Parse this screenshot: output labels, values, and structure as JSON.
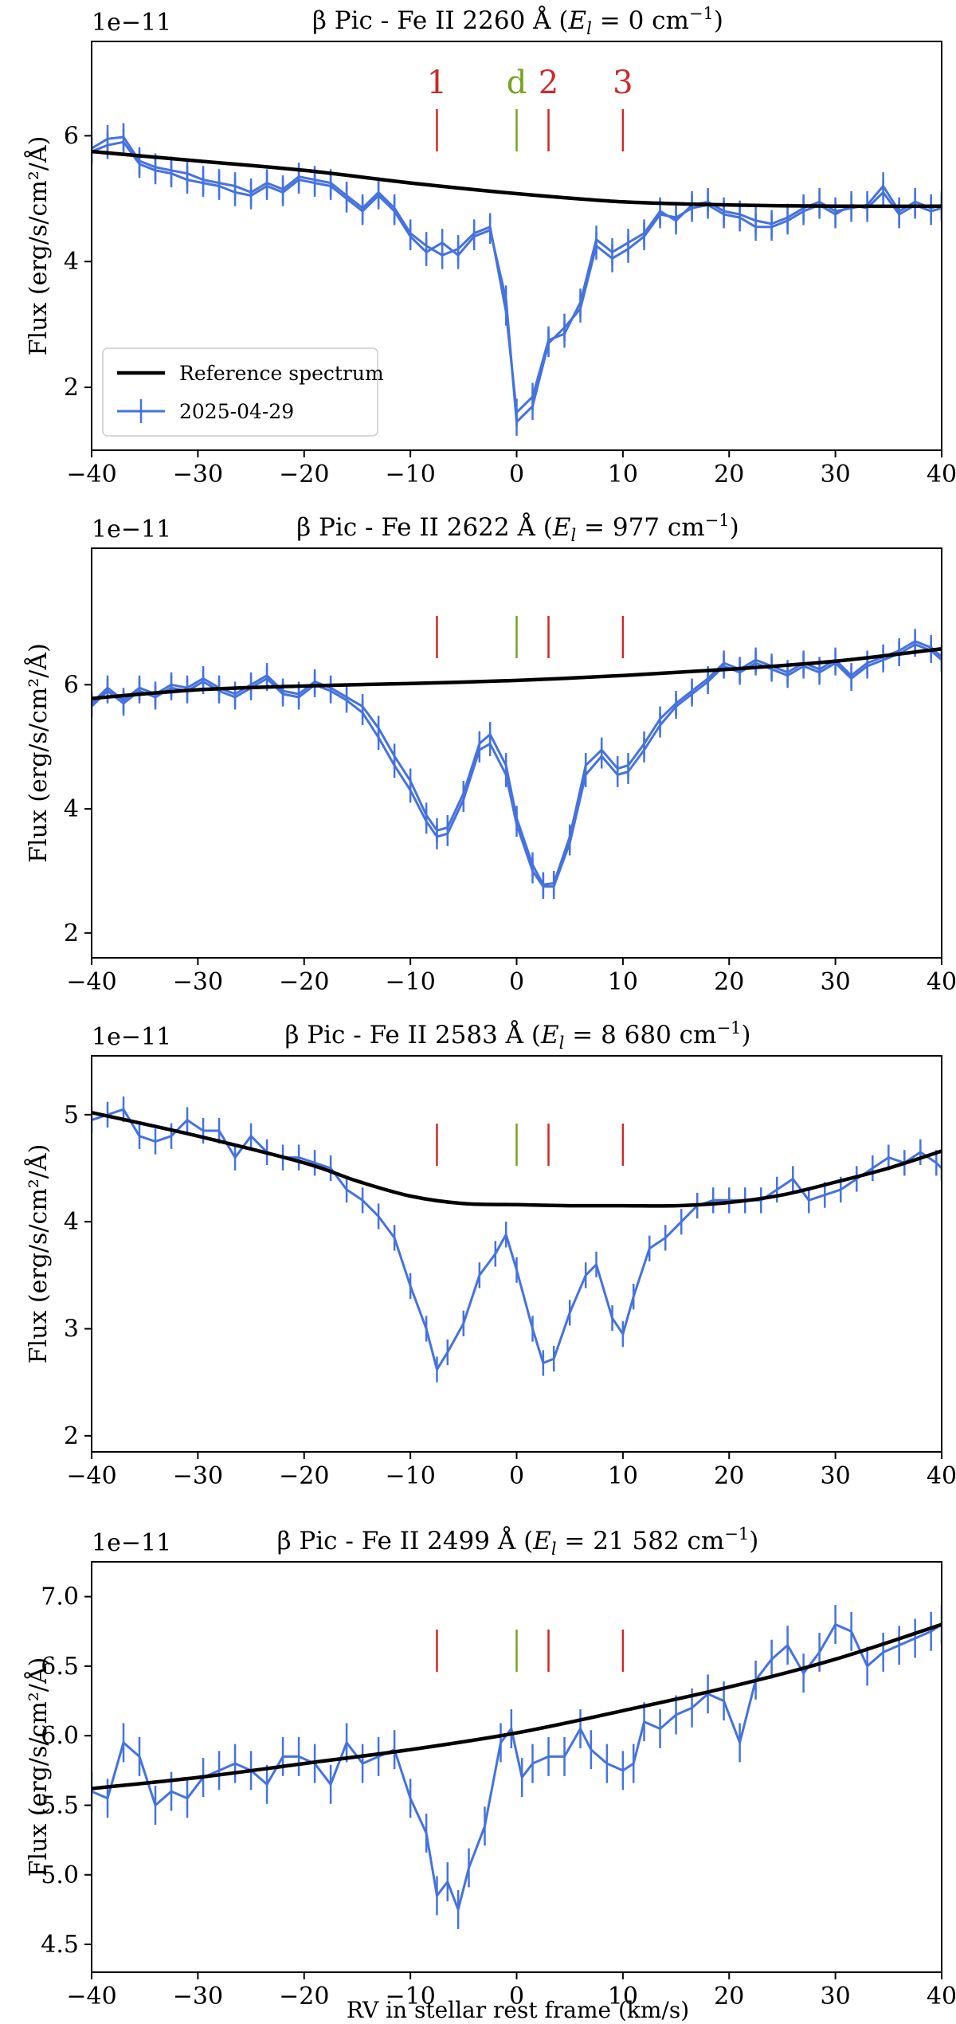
{
  "figure": {
    "xlabel": "RV in stellar rest frame (km/s)"
  },
  "chart_data": [
    {
      "type": "line",
      "title": "β Pic  -  Fe II 2260 Å  (E_l = 0 cm⁻¹)",
      "title_parts": {
        "prefix": "β Pic  -  Fe II 2260 Å  (",
        "El": "E",
        "sub": "l",
        "value": " = 0 cm",
        "sup": "−1",
        "suffix": ")"
      },
      "offset_label": "1e−11",
      "ylabel": "Flux (erg/s/cm²/Å)",
      "xlim": [
        -40,
        40
      ],
      "ylim": [
        1.0,
        7.5
      ],
      "xticks": [
        -40,
        -30,
        -20,
        -10,
        0,
        10,
        20,
        30,
        40
      ],
      "xtick_labels": [
        "−40",
        "−30",
        "−20",
        "−10",
        "0",
        "10",
        "20",
        "30",
        "40"
      ],
      "yticks": [
        2,
        4,
        6
      ],
      "ytick_labels": [
        "2",
        "4",
        "6"
      ],
      "legend": {
        "position": "bottom-left",
        "entries": [
          "Reference spectrum",
          "2025-04-29"
        ]
      },
      "markers": [
        {
          "x": -7.5,
          "label": "1",
          "color": "#cc2a2a"
        },
        {
          "x": 0,
          "label": "d",
          "color": "#76a323"
        },
        {
          "x": 3,
          "label": "2",
          "color": "#cc2a2a"
        },
        {
          "x": 10,
          "label": "3",
          "color": "#cc2a2a"
        }
      ],
      "reference": {
        "name": "Reference spectrum",
        "x": [
          -40,
          -30,
          -20,
          -10,
          0,
          10,
          20,
          30,
          40
        ],
        "y": [
          5.75,
          5.6,
          5.45,
          5.25,
          5.08,
          4.95,
          4.9,
          4.88,
          4.88
        ]
      },
      "series": [
        {
          "name": "2025-04-29",
          "x": [
            -40,
            -38.5,
            -37,
            -35.5,
            -34,
            -32.5,
            -31,
            -29.5,
            -28,
            -26.5,
            -25,
            -23.5,
            -22,
            -20.5,
            -19,
            -17.5,
            -16,
            -14.5,
            -13,
            -11.5,
            -10,
            -8.5,
            -7,
            -5.5,
            -4,
            -2.5,
            -1,
            0,
            1.5,
            3,
            4.5,
            6,
            7.5,
            9,
            10.5,
            12,
            13.5,
            15,
            16.5,
            18,
            19.5,
            21,
            22.5,
            24,
            25.5,
            27,
            28.5,
            30,
            31.5,
            33,
            34.5,
            36,
            37.5,
            39,
            40
          ],
          "y": [
            5.8,
            5.95,
            5.98,
            5.6,
            5.5,
            5.45,
            5.4,
            5.3,
            5.25,
            5.2,
            5.1,
            5.25,
            5.15,
            5.35,
            5.3,
            5.25,
            5.05,
            4.85,
            5.1,
            4.85,
            4.45,
            4.25,
            4.1,
            4.2,
            4.45,
            4.55,
            3.2,
            1.6,
            1.85,
            2.75,
            2.85,
            3.35,
            4.35,
            4.15,
            4.3,
            4.45,
            4.8,
            4.65,
            4.9,
            4.95,
            4.8,
            4.75,
            4.65,
            4.6,
            4.7,
            4.85,
            4.95,
            4.8,
            4.85,
            4.9,
            5.2,
            4.8,
            4.95,
            4.85,
            4.9
          ],
          "y2": [
            5.75,
            5.85,
            5.9,
            5.55,
            5.45,
            5.4,
            5.3,
            5.25,
            5.2,
            5.1,
            5.05,
            5.2,
            5.1,
            5.3,
            5.25,
            5.2,
            5.0,
            4.8,
            5.05,
            4.8,
            4.4,
            4.15,
            4.3,
            4.1,
            4.4,
            4.5,
            3.4,
            1.45,
            1.7,
            2.7,
            2.95,
            3.25,
            4.25,
            4.05,
            4.2,
            4.4,
            4.75,
            4.7,
            4.85,
            4.9,
            4.75,
            4.7,
            4.55,
            4.55,
            4.65,
            4.8,
            4.9,
            4.75,
            4.9,
            4.85,
            5.1,
            4.75,
            4.9,
            4.8,
            4.85
          ],
          "yerr": 0.22
        }
      ]
    },
    {
      "type": "line",
      "title": "β Pic  -  Fe II 2622 Å  (E_l = 977 cm⁻¹)",
      "title_parts": {
        "prefix": "β Pic  -  Fe II 2622 Å  (",
        "El": "E",
        "sub": "l",
        "value": " = 977 cm",
        "sup": "−1",
        "suffix": ")"
      },
      "offset_label": "1e−11",
      "ylabel": "Flux (erg/s/cm²/Å)",
      "xlim": [
        -40,
        40
      ],
      "ylim": [
        1.6,
        8.2
      ],
      "xticks": [
        -40,
        -30,
        -20,
        -10,
        0,
        10,
        20,
        30,
        40
      ],
      "xtick_labels": [
        "−40",
        "−30",
        "−20",
        "−10",
        "0",
        "10",
        "20",
        "30",
        "40"
      ],
      "yticks": [
        2,
        4,
        6
      ],
      "ytick_labels": [
        "2",
        "4",
        "6"
      ],
      "markers": [
        {
          "x": -7.5,
          "label": "",
          "color": "#cc2a2a"
        },
        {
          "x": 0,
          "label": "",
          "color": "#76a323"
        },
        {
          "x": 3,
          "label": "",
          "color": "#cc2a2a"
        },
        {
          "x": 10,
          "label": "",
          "color": "#cc2a2a"
        }
      ],
      "reference": {
        "name": "Reference spectrum",
        "x": [
          -40,
          -30,
          -20,
          -10,
          0,
          10,
          20,
          30,
          40
        ],
        "y": [
          5.78,
          5.92,
          5.98,
          6.02,
          6.07,
          6.15,
          6.25,
          6.38,
          6.58
        ]
      },
      "series": [
        {
          "name": "2025-04-29",
          "x": [
            -40,
            -38.5,
            -37,
            -35.5,
            -34,
            -32.5,
            -31,
            -29.5,
            -28,
            -26.5,
            -25,
            -23.5,
            -22,
            -20.5,
            -19,
            -17.5,
            -16,
            -14.5,
            -13,
            -11.5,
            -10,
            -8.5,
            -7.5,
            -6.5,
            -5,
            -3.5,
            -2.5,
            -1,
            0,
            1.5,
            2.5,
            3.5,
            5,
            6.5,
            8,
            9.5,
            10.5,
            12,
            13.5,
            15,
            16.5,
            18,
            19.5,
            21,
            22.5,
            24,
            25.5,
            27,
            28.5,
            30,
            31.5,
            33,
            34.5,
            36,
            37.5,
            39,
            40
          ],
          "y": [
            5.7,
            5.95,
            5.75,
            5.95,
            5.85,
            6.0,
            5.95,
            6.1,
            5.95,
            5.85,
            6.0,
            6.15,
            5.9,
            5.85,
            6.05,
            5.95,
            5.8,
            5.65,
            5.3,
            4.85,
            4.45,
            3.9,
            3.65,
            3.7,
            4.25,
            5.05,
            5.2,
            4.7,
            3.85,
            3.1,
            2.78,
            2.8,
            3.55,
            4.7,
            4.95,
            4.65,
            4.7,
            5.05,
            5.45,
            5.7,
            5.9,
            6.1,
            6.35,
            6.25,
            6.4,
            6.3,
            6.2,
            6.35,
            6.25,
            6.4,
            6.15,
            6.35,
            6.45,
            6.55,
            6.7,
            6.6,
            6.45
          ],
          "y2": [
            5.65,
            5.9,
            5.7,
            5.9,
            5.8,
            5.95,
            5.9,
            6.05,
            5.9,
            5.8,
            5.95,
            6.1,
            5.85,
            5.8,
            6.0,
            5.9,
            5.75,
            5.55,
            5.15,
            4.7,
            4.3,
            3.8,
            3.55,
            3.6,
            4.15,
            4.95,
            5.05,
            4.55,
            3.75,
            3.0,
            2.75,
            2.75,
            3.45,
            4.55,
            4.85,
            4.55,
            4.6,
            4.95,
            5.35,
            5.65,
            5.85,
            6.05,
            6.3,
            6.2,
            6.35,
            6.25,
            6.15,
            6.3,
            6.2,
            6.35,
            6.1,
            6.3,
            6.4,
            6.5,
            6.65,
            6.55,
            6.4
          ],
          "yerr": 0.2
        }
      ]
    },
    {
      "type": "line",
      "title": "β Pic  -  Fe II 2583 Å  (E_l = 8 680 cm⁻¹)",
      "title_parts": {
        "prefix": "β Pic  -  Fe II 2583 Å  (",
        "El": "E",
        "sub": "l",
        "value": " = 8 680 cm",
        "sup": "−1",
        "suffix": ")"
      },
      "offset_label": "1e−11",
      "ylabel": "Flux (erg/s/cm²/Å)",
      "xlim": [
        -40,
        40
      ],
      "ylim": [
        1.85,
        5.55
      ],
      "xticks": [
        -40,
        -30,
        -20,
        -10,
        0,
        10,
        20,
        30,
        40
      ],
      "xtick_labels": [
        "−40",
        "−30",
        "−20",
        "−10",
        "0",
        "10",
        "20",
        "30",
        "40"
      ],
      "yticks": [
        2,
        3,
        4,
        5
      ],
      "ytick_labels": [
        "2",
        "3",
        "4",
        "5"
      ],
      "markers": [
        {
          "x": -7.5,
          "label": "",
          "color": "#cc2a2a"
        },
        {
          "x": 0,
          "label": "",
          "color": "#76a323"
        },
        {
          "x": 3,
          "label": "",
          "color": "#cc2a2a"
        },
        {
          "x": 10,
          "label": "",
          "color": "#cc2a2a"
        }
      ],
      "reference": {
        "name": "Reference spectrum",
        "x": [
          -40,
          -30,
          -20,
          -15,
          -10,
          -5,
          0,
          5,
          10,
          15,
          20,
          25,
          30,
          35,
          40
        ],
        "y": [
          5.02,
          4.8,
          4.55,
          4.38,
          4.24,
          4.17,
          4.16,
          4.15,
          4.15,
          4.15,
          4.18,
          4.25,
          4.37,
          4.5,
          4.66
        ]
      },
      "series": [
        {
          "name": "2025-04-29",
          "x": [
            -40,
            -38.5,
            -37,
            -35.5,
            -34,
            -32.5,
            -31,
            -29.5,
            -28,
            -26.5,
            -25,
            -23.5,
            -22,
            -20.5,
            -19,
            -17.5,
            -16,
            -14.5,
            -13,
            -11.5,
            -10,
            -8.5,
            -7.5,
            -6.5,
            -5,
            -3.5,
            -2,
            -1,
            0,
            1.5,
            2.5,
            3.5,
            5,
            6.5,
            7.5,
            9,
            10,
            11,
            12.5,
            14,
            15.5,
            17,
            18.5,
            20,
            21.5,
            23,
            24.5,
            26,
            27.5,
            29,
            30.5,
            32,
            33.5,
            35,
            36.5,
            38,
            39.5,
            40
          ],
          "y": [
            4.95,
            5.0,
            5.05,
            4.8,
            4.75,
            4.8,
            4.95,
            4.85,
            4.85,
            4.6,
            4.8,
            4.65,
            4.6,
            4.6,
            4.55,
            4.5,
            4.3,
            4.2,
            4.05,
            3.85,
            3.4,
            3.0,
            2.62,
            2.78,
            3.05,
            3.5,
            3.7,
            3.88,
            3.55,
            3.0,
            2.68,
            2.72,
            3.15,
            3.5,
            3.6,
            3.1,
            2.95,
            3.3,
            3.75,
            3.85,
            4.0,
            4.15,
            4.2,
            4.2,
            4.2,
            4.2,
            4.3,
            4.4,
            4.2,
            4.25,
            4.3,
            4.4,
            4.5,
            4.6,
            4.55,
            4.65,
            4.55,
            4.5
          ],
          "yerr": 0.12
        }
      ]
    },
    {
      "type": "line",
      "title": "β Pic  -  Fe II 2499 Å  (E_l = 21 582 cm⁻¹)",
      "title_parts": {
        "prefix": "β Pic  -  Fe II 2499 Å  (",
        "El": "E",
        "sub": "l",
        "value": " = 21 582 cm",
        "sup": "−1",
        "suffix": ")"
      },
      "offset_label": "1e−11",
      "ylabel": "Flux (erg/s/cm²/Å)",
      "xlim": [
        -40,
        40
      ],
      "ylim": [
        4.3,
        7.25
      ],
      "xticks": [
        -40,
        -30,
        -20,
        -10,
        0,
        10,
        20,
        30,
        40
      ],
      "xtick_labels": [
        "−40",
        "−30",
        "−20",
        "−10",
        "0",
        "10",
        "20",
        "30",
        "40"
      ],
      "yticks": [
        4.5,
        5.0,
        5.5,
        6.0,
        6.5,
        7.0
      ],
      "ytick_labels": [
        "4.5",
        "5.0",
        "5.5",
        "6.0",
        "6.5",
        "7.0"
      ],
      "markers": [
        {
          "x": -7.5,
          "label": "",
          "color": "#cc2a2a"
        },
        {
          "x": 0,
          "label": "",
          "color": "#76a323"
        },
        {
          "x": 3,
          "label": "",
          "color": "#cc2a2a"
        },
        {
          "x": 10,
          "label": "",
          "color": "#cc2a2a"
        }
      ],
      "reference": {
        "name": "Reference spectrum",
        "x": [
          -40,
          -30,
          -20,
          -10,
          0,
          10,
          20,
          30,
          40
        ],
        "y": [
          5.62,
          5.7,
          5.8,
          5.9,
          6.02,
          6.18,
          6.35,
          6.55,
          6.8
        ]
      },
      "series": [
        {
          "name": "2025-04-29",
          "x": [
            -40,
            -38.5,
            -37,
            -35.5,
            -34,
            -32.5,
            -31,
            -29.5,
            -28,
            -26.5,
            -25,
            -23.5,
            -22,
            -20.5,
            -19,
            -17.5,
            -16,
            -14.5,
            -13,
            -11.5,
            -10,
            -8.5,
            -7.5,
            -6.5,
            -5.5,
            -4.5,
            -3,
            -1.5,
            -0.5,
            0.5,
            1.5,
            3,
            4.5,
            6,
            7,
            8.5,
            10,
            11,
            12,
            13.5,
            15,
            16.5,
            18,
            19.5,
            21,
            22.5,
            24,
            25.5,
            27,
            28.5,
            30,
            31.5,
            33,
            34.5,
            36,
            37.5,
            39,
            40
          ],
          "y": [
            5.6,
            5.55,
            5.95,
            5.85,
            5.5,
            5.6,
            5.55,
            5.7,
            5.75,
            5.8,
            5.75,
            5.65,
            5.85,
            5.85,
            5.8,
            5.65,
            5.95,
            5.8,
            5.85,
            5.9,
            5.55,
            5.3,
            4.85,
            4.95,
            4.75,
            5.05,
            5.35,
            5.95,
            6.05,
            5.7,
            5.8,
            5.85,
            5.85,
            6.05,
            5.9,
            5.8,
            5.75,
            5.8,
            6.1,
            6.05,
            6.15,
            6.2,
            6.3,
            6.25,
            5.95,
            6.4,
            6.55,
            6.65,
            6.45,
            6.6,
            6.8,
            6.75,
            6.5,
            6.6,
            6.65,
            6.7,
            6.75,
            6.8
          ],
          "yerr": 0.14
        }
      ]
    }
  ]
}
